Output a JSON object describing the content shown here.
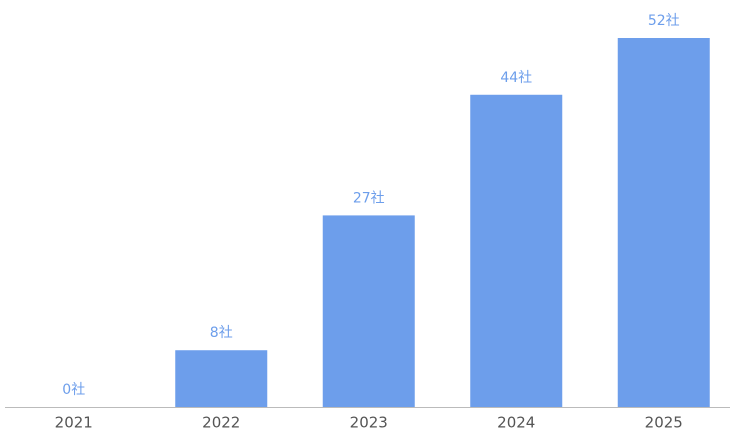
{
  "chart_data": {
    "type": "bar",
    "categories": [
      "2021",
      "2022",
      "2023",
      "2024",
      "2025"
    ],
    "values": [
      0,
      8,
      27,
      44,
      52
    ],
    "value_labels": [
      "0社",
      "8社",
      "27社",
      "44社",
      "52社"
    ],
    "color": "#6d9eeb"
  }
}
